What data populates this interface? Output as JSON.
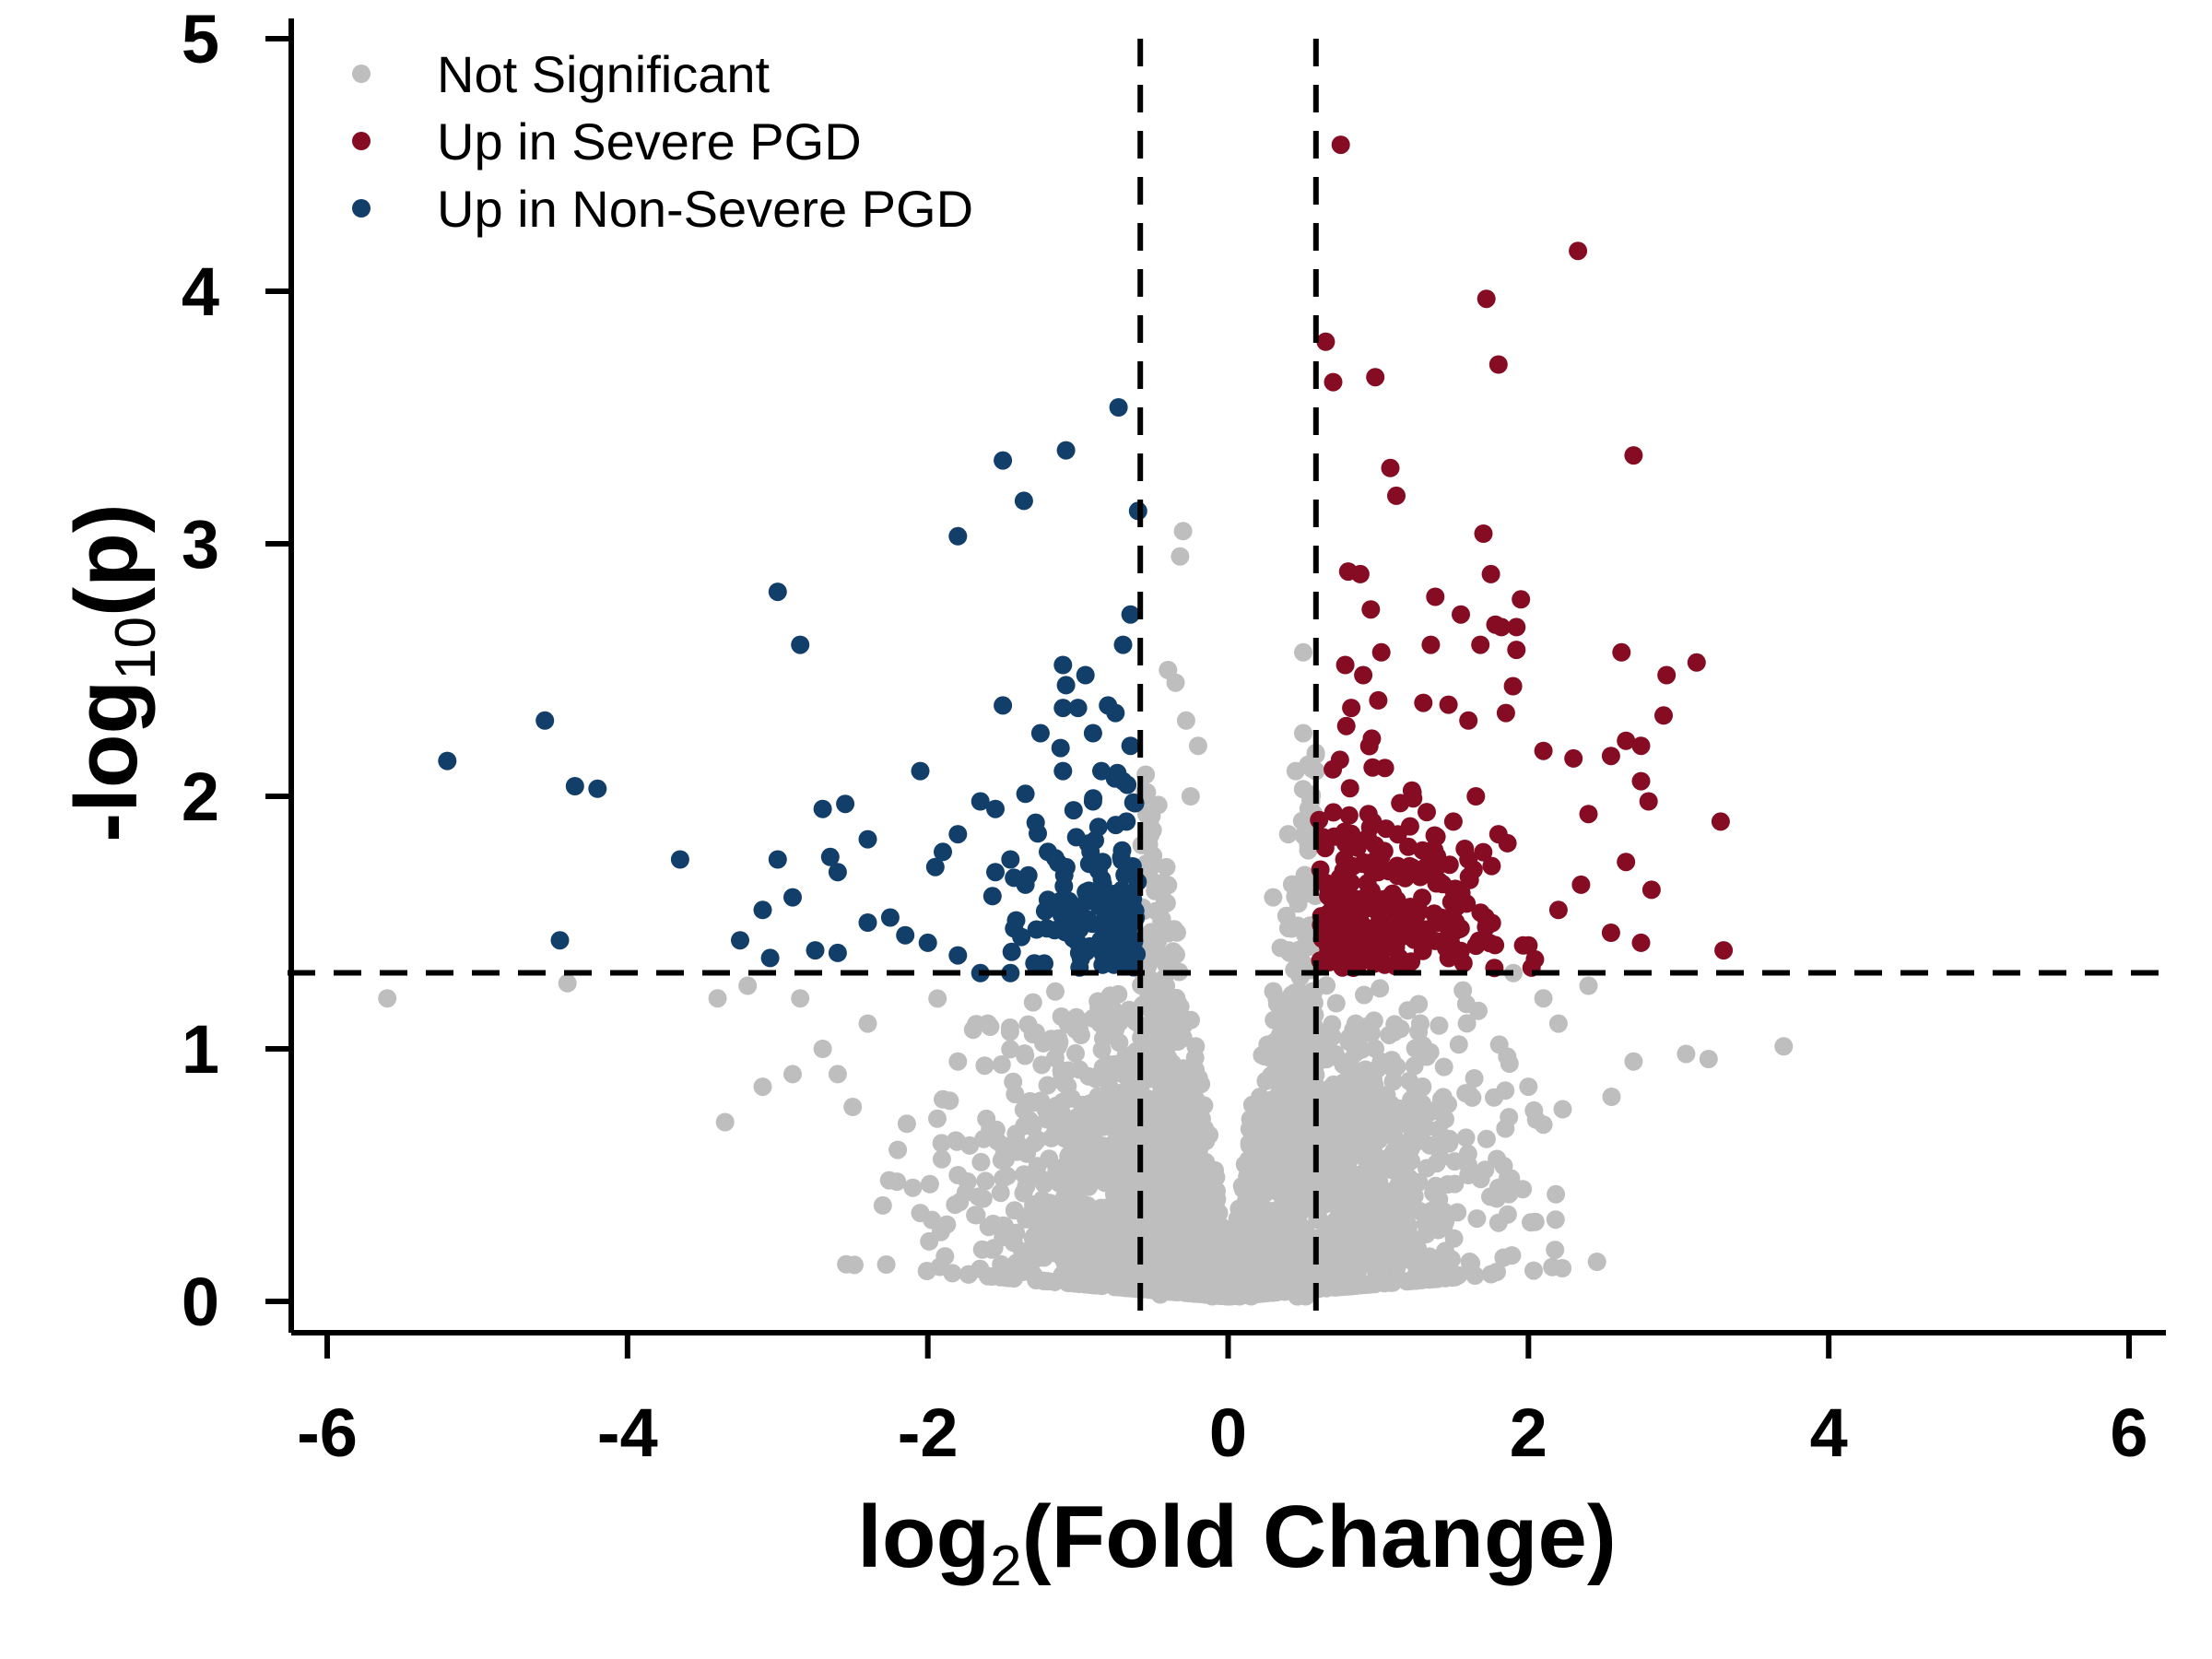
{
  "chart_data": {
    "type": "scatter",
    "title": "",
    "xlabel_main": "log",
    "xlabel_sub": "2",
    "xlabel_rest": "(Fold Change)",
    "ylabel_main": "-log",
    "ylabel_sub": "10",
    "ylabel_rest": "(p)",
    "xlim": [
      -6.2,
      6.2
    ],
    "ylim": [
      0,
      5
    ],
    "x_ticks": [
      -6,
      -4,
      -2,
      0,
      2,
      4,
      6
    ],
    "y_ticks": [
      0,
      1,
      2,
      3,
      4,
      5
    ],
    "x_tick_labels": [
      "-6",
      "-4",
      "-2",
      "0",
      "2",
      "4",
      "6"
    ],
    "y_tick_labels": [
      "0",
      "1",
      "2",
      "3",
      "4",
      "5"
    ],
    "thresholds": {
      "fc_low": -0.585,
      "fc_high": 0.585,
      "p": 1.301
    },
    "legend_position": "top-left",
    "series": [
      {
        "name": "Not Significant",
        "color": "#bebebe",
        "points": [
          [
            -5.6,
            1.2
          ],
          [
            -4.4,
            1.26
          ],
          [
            -3.4,
            1.2
          ],
          [
            -3.2,
            1.25
          ],
          [
            -3.1,
            0.85
          ],
          [
            -2.9,
            0.9
          ],
          [
            -2.85,
            1.2
          ],
          [
            -3.35,
            0.71
          ],
          [
            -2.5,
            0.77
          ],
          [
            -2.4,
            1.1
          ],
          [
            -2.2,
            0.6
          ],
          [
            -2.1,
            0.45
          ],
          [
            -1.9,
            0.8
          ],
          [
            -1.8,
            0.95
          ],
          [
            -2.3,
            0.38
          ],
          [
            -2.05,
            0.35
          ],
          [
            -1.5,
            0.3
          ],
          [
            -1.3,
            0.25
          ],
          [
            -0.4,
            2.5
          ],
          [
            -0.35,
            2.45
          ],
          [
            -0.3,
            3.05
          ],
          [
            -0.32,
            2.95
          ],
          [
            -0.28,
            2.3
          ],
          [
            -0.2,
            2.2
          ],
          [
            -0.25,
            2.0
          ],
          [
            0.5,
            2.57
          ],
          [
            0.5,
            2.25
          ],
          [
            0.45,
            2.1
          ],
          [
            0.4,
            1.85
          ],
          [
            0.3,
            1.6
          ],
          [
            0.35,
            1.4
          ],
          [
            1.9,
            1.3
          ],
          [
            2.1,
            1.2
          ],
          [
            2.2,
            1.1
          ],
          [
            2.4,
            1.25
          ],
          [
            2.7,
            0.95
          ],
          [
            3.05,
            0.98
          ],
          [
            3.2,
            0.96
          ],
          [
            3.7,
            1.01
          ],
          [
            2.1,
            0.7
          ],
          [
            2.0,
            0.85
          ],
          [
            1.8,
            0.45
          ],
          [
            1.6,
            0.5
          ],
          [
            1.4,
            0.4
          ],
          [
            1.2,
            0.3
          ],
          [
            0.9,
            0.2
          ],
          [
            -0.9,
            0.2
          ],
          [
            -1.1,
            0.28
          ],
          [
            -0.6,
            0.15
          ],
          [
            -0.5,
            0.1
          ],
          [
            0.6,
            0.15
          ],
          [
            -1.8,
            0.5
          ],
          [
            -2.6,
            0.9
          ],
          [
            -2.7,
            1.0
          ],
          [
            -1.6,
            1.1
          ]
        ],
        "generated_cloud": true
      },
      {
        "name": "Up in Severe PGD",
        "color": "#850c22",
        "points": [
          [
            0.75,
            4.58
          ],
          [
            2.33,
            4.16
          ],
          [
            1.72,
            3.97
          ],
          [
            1.8,
            3.71
          ],
          [
            0.65,
            3.8
          ],
          [
            0.7,
            3.64
          ],
          [
            0.98,
            3.66
          ],
          [
            2.7,
            3.35
          ],
          [
            1.08,
            3.3
          ],
          [
            1.12,
            3.19
          ],
          [
            1.7,
            3.04
          ],
          [
            0.8,
            2.89
          ],
          [
            0.88,
            2.88
          ],
          [
            1.75,
            2.88
          ],
          [
            0.95,
            2.74
          ],
          [
            1.95,
            2.78
          ],
          [
            1.38,
            2.79
          ],
          [
            1.55,
            2.72
          ],
          [
            1.82,
            2.67
          ],
          [
            1.92,
            2.67
          ],
          [
            1.78,
            2.68
          ],
          [
            1.68,
            2.6
          ],
          [
            1.92,
            2.58
          ],
          [
            2.62,
            2.57
          ],
          [
            3.12,
            2.53
          ],
          [
            2.92,
            2.48
          ],
          [
            1.02,
            2.57
          ],
          [
            0.78,
            2.52
          ],
          [
            0.9,
            2.48
          ],
          [
            1.35,
            2.6
          ],
          [
            0.82,
            2.35
          ],
          [
            1.0,
            2.38
          ],
          [
            1.3,
            2.37
          ],
          [
            1.6,
            2.3
          ],
          [
            1.85,
            2.33
          ],
          [
            2.65,
            2.22
          ],
          [
            2.9,
            2.32
          ],
          [
            2.75,
            2.2
          ],
          [
            2.1,
            2.18
          ],
          [
            2.3,
            2.15
          ],
          [
            2.55,
            2.16
          ],
          [
            2.75,
            2.06
          ],
          [
            2.8,
            1.98
          ],
          [
            2.4,
            1.93
          ],
          [
            3.28,
            1.9
          ],
          [
            2.65,
            1.74
          ],
          [
            2.35,
            1.65
          ],
          [
            2.82,
            1.63
          ],
          [
            2.2,
            1.55
          ],
          [
            2.55,
            1.46
          ],
          [
            2.75,
            1.42
          ],
          [
            3.3,
            1.39
          ],
          [
            1.65,
            2.0
          ],
          [
            1.5,
            1.9
          ],
          [
            1.2,
            1.8
          ],
          [
            1.0,
            1.7
          ],
          [
            0.8,
            1.6
          ],
          [
            0.9,
            1.55
          ],
          [
            0.7,
            1.45
          ],
          [
            0.65,
            1.35
          ],
          [
            1.1,
            1.4
          ],
          [
            1.4,
            1.5
          ],
          [
            1.6,
            1.75
          ],
          [
            1.8,
            1.85
          ]
        ],
        "generated_cloud": true
      },
      {
        "name": "Up in Non-Severe PGD",
        "color": "#123e6a",
        "points": [
          [
            -0.73,
            3.54
          ],
          [
            -1.08,
            3.37
          ],
          [
            -1.5,
            3.33
          ],
          [
            -1.36,
            3.17
          ],
          [
            -0.6,
            3.13
          ],
          [
            -1.8,
            3.03
          ],
          [
            -3.0,
            2.81
          ],
          [
            -0.65,
            2.72
          ],
          [
            -2.85,
            2.6
          ],
          [
            -0.7,
            2.6
          ],
          [
            -1.1,
            2.52
          ],
          [
            -1.08,
            2.44
          ],
          [
            -0.95,
            2.48
          ],
          [
            -1.1,
            2.35
          ],
          [
            -1.0,
            2.35
          ],
          [
            -1.5,
            2.36
          ],
          [
            -0.8,
            2.36
          ],
          [
            -0.75,
            2.33
          ],
          [
            -4.55,
            2.3
          ],
          [
            -1.25,
            2.25
          ],
          [
            -0.9,
            2.25
          ],
          [
            -5.2,
            2.14
          ],
          [
            -4.35,
            2.04
          ],
          [
            -4.2,
            2.03
          ],
          [
            -2.05,
            2.1
          ],
          [
            -1.1,
            2.1
          ],
          [
            -0.65,
            2.2
          ],
          [
            -0.7,
            2.06
          ],
          [
            -1.35,
            2.01
          ],
          [
            -0.9,
            1.98
          ],
          [
            -2.55,
            1.97
          ],
          [
            -2.7,
            1.95
          ],
          [
            -1.65,
            1.98
          ],
          [
            -1.55,
            1.95
          ],
          [
            -1.8,
            1.85
          ],
          [
            -2.4,
            1.83
          ],
          [
            -3.65,
            1.75
          ],
          [
            -3.0,
            1.75
          ],
          [
            -2.65,
            1.76
          ],
          [
            -1.9,
            1.78
          ],
          [
            -1.45,
            1.75
          ],
          [
            -1.2,
            1.78
          ],
          [
            -2.6,
            1.7
          ],
          [
            -1.55,
            1.7
          ],
          [
            -1.95,
            1.72
          ],
          [
            -1.35,
            1.65
          ],
          [
            -2.9,
            1.6
          ],
          [
            -3.1,
            1.55
          ],
          [
            -2.25,
            1.52
          ],
          [
            -2.4,
            1.5
          ],
          [
            -2.15,
            1.45
          ],
          [
            -2.0,
            1.42
          ],
          [
            -3.25,
            1.43
          ],
          [
            -4.45,
            1.43
          ],
          [
            -2.6,
            1.38
          ],
          [
            -2.75,
            1.39
          ],
          [
            -3.05,
            1.36
          ],
          [
            -1.8,
            1.37
          ],
          [
            -1.65,
            1.3
          ],
          [
            -1.45,
            1.3
          ]
        ],
        "generated_cloud": true
      }
    ]
  }
}
